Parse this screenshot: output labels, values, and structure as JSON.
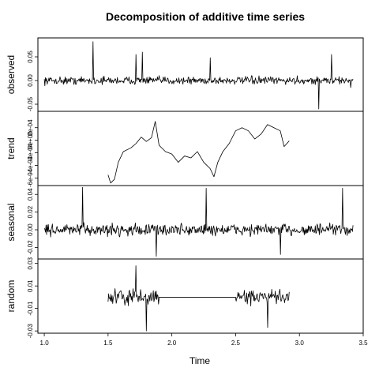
{
  "chart_data": {
    "type": "line",
    "title": "Decomposition of additive time series",
    "xlabel": "Time",
    "x_range": [
      1.0,
      3.4
    ],
    "x_ticks": [
      1.0,
      1.5,
      2.0,
      2.5,
      3.0,
      3.5
    ],
    "x_tick_labels": [
      "1.0",
      "1.5",
      "2.0",
      "2.5",
      "3.0",
      "3.5"
    ],
    "panels": [
      {
        "name": "observed",
        "ylabel": "observed",
        "ylim": [
          -0.065,
          0.09
        ],
        "y_ticks": [
          -0.05,
          0.0,
          0.05
        ],
        "y_tick_labels": [
          "-0.05",
          "0.00",
          "0.05"
        ],
        "x_start": 1.0,
        "x_end": 3.42,
        "noise_amplitude": 0.012,
        "spikes": [
          {
            "x": 1.38,
            "y": 0.082
          },
          {
            "x": 1.72,
            "y": 0.055
          },
          {
            "x": 1.77,
            "y": 0.06
          },
          {
            "x": 3.15,
            "y": -0.06
          },
          {
            "x": 3.25,
            "y": 0.055
          },
          {
            "x": 3.4,
            "y": -0.015
          },
          {
            "x": 2.3,
            "y": 0.048
          }
        ]
      },
      {
        "name": "trend",
        "ylabel": "trend",
        "ylim": [
          -0.00072,
          0.00046
        ],
        "y_ticks": [
          -0.0006,
          -0.0004,
          -0.0002,
          0.0,
          0.0002
        ],
        "y_tick_labels": [
          "-6e-04",
          "-4e-04",
          "-2e-04",
          "0e+00",
          "2e-04"
        ],
        "x_start": 1.5,
        "x_end": 2.92,
        "path": [
          [
            1.5,
            -0.00055
          ],
          [
            1.52,
            -0.00068
          ],
          [
            1.55,
            -0.00062
          ],
          [
            1.58,
            -0.00035
          ],
          [
            1.62,
            -0.00018
          ],
          [
            1.68,
            -0.00012
          ],
          [
            1.72,
            -5e-05
          ],
          [
            1.76,
            5e-05
          ],
          [
            1.8,
            -2e-05
          ],
          [
            1.84,
            4e-05
          ],
          [
            1.87,
            0.0003
          ],
          [
            1.9,
            -8e-05
          ],
          [
            1.95,
            -0.00018
          ],
          [
            2.0,
            -0.00022
          ],
          [
            2.05,
            -0.00035
          ],
          [
            2.1,
            -0.00025
          ],
          [
            2.15,
            -0.00028
          ],
          [
            2.2,
            -0.00018
          ],
          [
            2.25,
            -0.00035
          ],
          [
            2.3,
            -0.00045
          ],
          [
            2.33,
            -0.00058
          ],
          [
            2.36,
            -0.00035
          ],
          [
            2.4,
            -0.00018
          ],
          [
            2.45,
            -5e-05
          ],
          [
            2.5,
            0.00015
          ],
          [
            2.55,
            0.0002
          ],
          [
            2.6,
            0.00015
          ],
          [
            2.65,
            2e-05
          ],
          [
            2.7,
            0.0001
          ],
          [
            2.75,
            0.00025
          ],
          [
            2.8,
            0.0002
          ],
          [
            2.85,
            0.00015
          ],
          [
            2.88,
            -0.0001
          ],
          [
            2.92,
            -1e-05
          ]
        ]
      },
      {
        "name": "seasonal",
        "ylabel": "seasonal",
        "ylim": [
          -0.033,
          0.05
        ],
        "y_ticks": [
          -0.02,
          0.0,
          0.02,
          0.04
        ],
        "y_tick_labels": [
          "-0.02",
          "0.00",
          "0.02",
          "0.04"
        ],
        "x_start": 1.0,
        "x_end": 3.42,
        "noise_amplitude": 0.01,
        "spikes": [
          {
            "x": 1.3,
            "y": 0.048
          },
          {
            "x": 2.27,
            "y": 0.047
          },
          {
            "x": 3.34,
            "y": 0.047
          },
          {
            "x": 1.88,
            "y": -0.03
          },
          {
            "x": 2.85,
            "y": -0.028
          }
        ]
      },
      {
        "name": "random",
        "ylabel": "random",
        "ylim": [
          -0.032,
          0.034
        ],
        "y_ticks": [
          -0.03,
          -0.01,
          0.01,
          0.03
        ],
        "y_tick_labels": [
          "-0.03",
          "-0.01",
          "0.01",
          "0.03"
        ],
        "segments": [
          {
            "x_start": 1.5,
            "x_end": 1.9,
            "noise_amplitude": 0.01
          },
          {
            "x_start": 1.9,
            "x_end": 2.5,
            "flat_value": 0.0
          },
          {
            "x_start": 2.5,
            "x_end": 2.92,
            "noise_amplitude": 0.009
          }
        ],
        "spikes": [
          {
            "x": 1.8,
            "y": -0.03
          },
          {
            "x": 1.72,
            "y": 0.028
          },
          {
            "x": 2.75,
            "y": -0.027
          }
        ]
      }
    ]
  }
}
